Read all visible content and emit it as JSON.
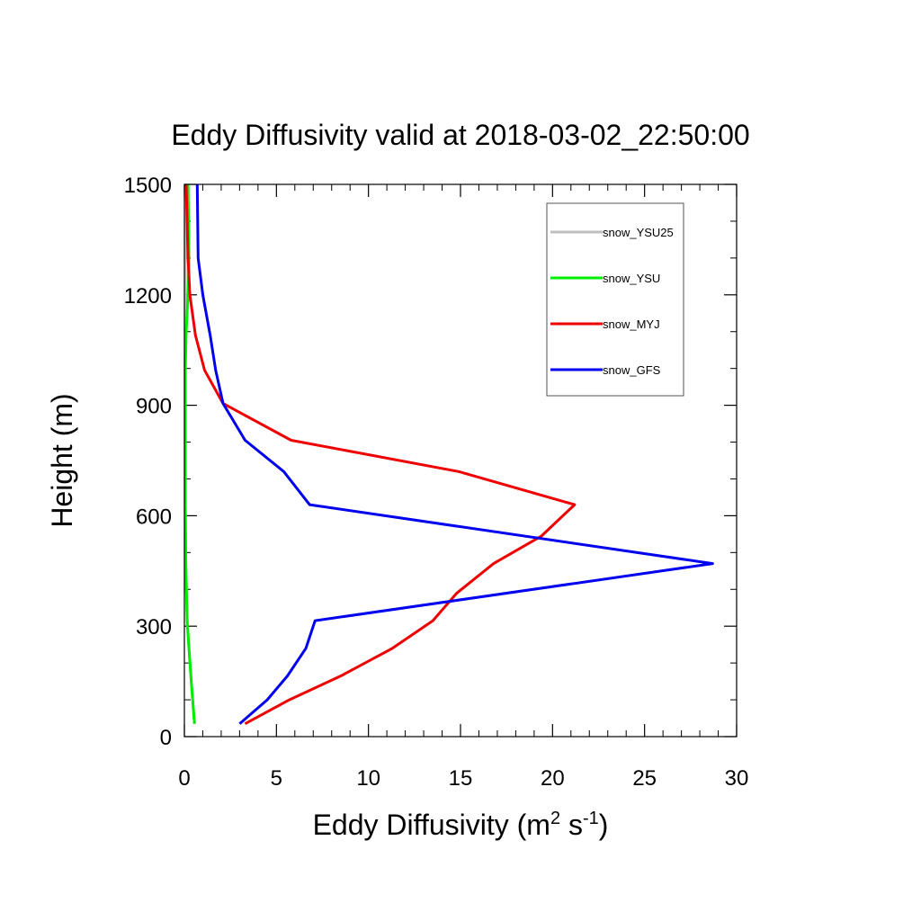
{
  "chart_data": {
    "type": "line",
    "title": "Eddy Diffusivity valid at 2018-03-02_22:50:00",
    "xlabel": {
      "base": "Eddy Diffusivity (m",
      "sup1": "2",
      "mid": " s",
      "sup2": "-1",
      "end": ")"
    },
    "ylabel": "Height (m)",
    "xlim": [
      0,
      30
    ],
    "ylim": [
      0,
      1500
    ],
    "x_ticks": [
      0,
      5,
      10,
      15,
      20,
      25,
      30
    ],
    "y_ticks": [
      0,
      300,
      600,
      900,
      1200,
      1500
    ],
    "x_minor_step": 1,
    "y_minor_step": 100,
    "legend_position": "top-right",
    "series": [
      {
        "name": "snow_YSU25",
        "color": "#bebebe",
        "x": [
          0.55,
          0.45,
          0.35,
          0.25,
          0.15,
          0.08,
          0.05,
          0.05,
          0.05,
          0.05,
          0.1
        ],
        "y": [
          35,
          100,
          165,
          240,
          315,
          470,
          630,
          805,
          995,
          1300,
          1500
        ]
      },
      {
        "name": "snow_YSU",
        "color": "#00ee00",
        "x": [
          0.55,
          0.45,
          0.35,
          0.25,
          0.15,
          0.08,
          0.05,
          0.05,
          0.05,
          0.1,
          0.2,
          0.25,
          0.2
        ],
        "y": [
          35,
          100,
          165,
          240,
          315,
          470,
          630,
          805,
          995,
          1100,
          1200,
          1300,
          1500
        ]
      },
      {
        "name": "snow_MYJ",
        "color": "#ee0000",
        "x": [
          3.3,
          5.7,
          8.5,
          11.3,
          13.5,
          14.8,
          16.8,
          19.4,
          21.2,
          14.9,
          5.8,
          2.1,
          1.1,
          0.6,
          0.3,
          0.2,
          0.1
        ],
        "y": [
          35,
          100,
          165,
          240,
          315,
          390,
          470,
          545,
          630,
          720,
          805,
          905,
          995,
          1090,
          1200,
          1300,
          1500
        ]
      },
      {
        "name": "snow_GFS",
        "color": "#0000ee",
        "x": [
          3.0,
          4.5,
          5.6,
          6.6,
          7.1,
          28.7,
          6.8,
          5.4,
          3.3,
          2.1,
          1.7,
          1.4,
          1.0,
          0.75,
          0.7
        ],
        "y": [
          35,
          100,
          165,
          240,
          315,
          470,
          630,
          720,
          805,
          905,
          995,
          1090,
          1200,
          1300,
          1500
        ]
      }
    ]
  }
}
